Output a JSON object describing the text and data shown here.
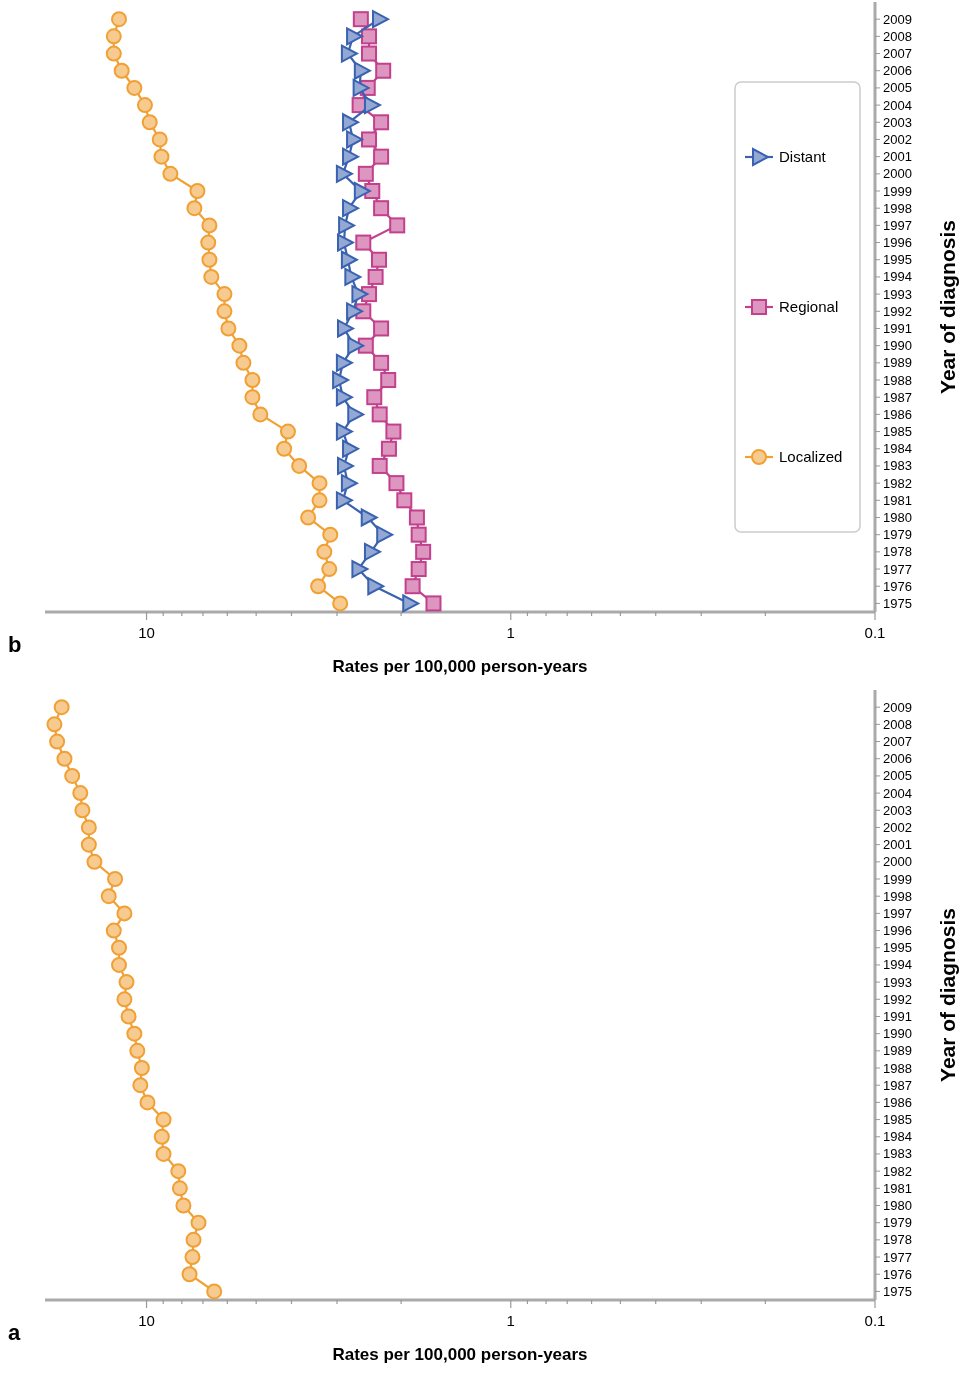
{
  "chart_data": [
    {
      "type": "line",
      "title": "a",
      "xlabel": "Rates per 100,000 person-years",
      "ylabel": "Year of diagnosis",
      "log": "x",
      "legend": false,
      "xlim": [
        19,
        0.1
      ],
      "xticks": [
        {
          "value": 9,
          "label": null
        },
        {
          "value": 8,
          "label": null
        },
        {
          "value": 7,
          "label": null
        },
        {
          "value": 6,
          "label": null
        },
        {
          "value": 5,
          "label": null
        },
        {
          "value": 4,
          "label": null
        },
        {
          "value": 3,
          "label": null
        },
        {
          "value": 2,
          "label": null
        },
        10,
        1,
        {
          "value": 0.9,
          "label": null
        },
        {
          "value": 0.8,
          "label": null
        },
        {
          "value": 0.7,
          "label": null
        },
        {
          "value": 0.6,
          "label": null
        },
        {
          "value": 0.5,
          "label": null
        },
        {
          "value": 0.4,
          "label": null
        },
        {
          "value": 0.3,
          "label": null
        },
        {
          "value": 0.2,
          "label": null
        },
        0.1
      ],
      "ylim": [
        1974.5,
        2010
      ],
      "yticks": [
        1975,
        1976,
        1977,
        1978,
        1979,
        1980,
        1981,
        1982,
        1983,
        1984,
        1985,
        1986,
        1987,
        1988,
        1989,
        1990,
        1991,
        1992,
        1993,
        1994,
        1995,
        1996,
        1997,
        1998,
        1999,
        2000,
        2001,
        2002,
        2003,
        2004,
        2005,
        2006,
        2007,
        2008,
        2009
      ],
      "series": [
        {
          "color": "#f0a035",
          "marker": "circle",
          "x": [
            6.52,
            7.62,
            7.48,
            7.43,
            7.2,
            7.92,
            8.1,
            8.18,
            8.98,
            9.08,
            8.98,
            9.94,
            10.4,
            10.3,
            10.6,
            10.8,
            11.2,
            11.5,
            11.35,
            11.9,
            11.9,
            12.3,
            11.5,
            12.7,
            12.2,
            13.9,
            14.4,
            14.4,
            15.0,
            15.2,
            16.0,
            16.8,
            17.6,
            17.9,
            17.1
          ],
          "values": [
            1975,
            1976,
            1977,
            1978,
            1979,
            1980,
            1981,
            1982,
            1983,
            1984,
            1985,
            1986,
            1987,
            1988,
            1989,
            1990,
            1991,
            1992,
            1993,
            1994,
            1995,
            1996,
            1997,
            1998,
            1999,
            2000,
            2001,
            2002,
            2003,
            2004,
            2005,
            2006,
            2007,
            2008,
            2009
          ]
        }
      ]
    },
    {
      "type": "line",
      "title": "b",
      "xlabel": "Rates per 100,000 person-years",
      "ylabel": "Year of diagnosis",
      "log": "x",
      "legend": "right",
      "xlim": [
        19,
        0.1
      ],
      "xticks": [
        {
          "value": 9,
          "label": null
        },
        {
          "value": 8,
          "label": null
        },
        {
          "value": 7,
          "label": null
        },
        {
          "value": 6,
          "label": null
        },
        {
          "value": 5,
          "label": null
        },
        {
          "value": 4,
          "label": null
        },
        {
          "value": 3,
          "label": null
        },
        {
          "value": 2,
          "label": null
        },
        10,
        1,
        {
          "value": 0.9,
          "label": null
        },
        {
          "value": 0.8,
          "label": null
        },
        {
          "value": 0.7,
          "label": null
        },
        {
          "value": 0.6,
          "label": null
        },
        {
          "value": 0.5,
          "label": null
        },
        {
          "value": 0.4,
          "label": null
        },
        {
          "value": 0.3,
          "label": null
        },
        {
          "value": 0.2,
          "label": null
        },
        0.1
      ],
      "ylim": [
        1974.5,
        2010
      ],
      "yticks": [
        1975,
        1976,
        1977,
        1978,
        1979,
        1980,
        1981,
        1982,
        1983,
        1984,
        1985,
        1986,
        1987,
        1988,
        1989,
        1990,
        1991,
        1992,
        1993,
        1994,
        1995,
        1996,
        1997,
        1998,
        1999,
        2000,
        2001,
        2002,
        2003,
        2004,
        2005,
        2006,
        2007,
        2008,
        2009
      ],
      "series": [
        {
          "name": "Localized",
          "color": "#f0a035",
          "marker": "circle",
          "x": [
            2.94,
            3.38,
            3.15,
            3.25,
            3.13,
            3.6,
            3.35,
            3.35,
            3.81,
            4.19,
            4.09,
            4.87,
            5.12,
            5.12,
            5.42,
            5.56,
            5.96,
            6.11,
            6.11,
            6.64,
            6.72,
            6.77,
            6.72,
            7.39,
            7.25,
            8.6,
            9.1,
            9.2,
            9.8,
            10.1,
            10.8,
            11.7,
            12.3,
            12.3,
            11.9
          ],
          "values": [
            1975,
            1976,
            1977,
            1978,
            1979,
            1980,
            1981,
            1982,
            1983,
            1984,
            1985,
            1986,
            1987,
            1988,
            1989,
            1990,
            1991,
            1992,
            1993,
            1994,
            1995,
            1996,
            1997,
            1998,
            1999,
            2000,
            2001,
            2002,
            2003,
            2004,
            2005,
            2006,
            2007,
            2008,
            2009
          ]
        },
        {
          "name": "Regional",
          "color": "#c2408c",
          "marker": "square",
          "x": [
            1.63,
            1.86,
            1.79,
            1.74,
            1.79,
            1.81,
            1.96,
            2.06,
            2.29,
            2.16,
            2.1,
            2.29,
            2.37,
            2.17,
            2.27,
            2.5,
            2.27,
            2.54,
            2.45,
            2.35,
            2.3,
            2.54,
            2.05,
            2.27,
            2.4,
            2.5,
            2.27,
            2.45,
            2.27,
            2.6,
            2.47,
            2.24,
            2.45,
            2.45,
            2.58
          ],
          "values": [
            1975,
            1976,
            1977,
            1978,
            1979,
            1980,
            1981,
            1982,
            1983,
            1984,
            1985,
            1986,
            1987,
            1988,
            1989,
            1990,
            1991,
            1992,
            1993,
            1994,
            1995,
            1996,
            1997,
            1998,
            1999,
            2000,
            2001,
            2002,
            2003,
            2004,
            2005,
            2006,
            2007,
            2008,
            2009
          ]
        },
        {
          "name": "Distant",
          "color": "#3a62b0",
          "marker": "triangle",
          "x": [
            1.9,
            2.37,
            2.62,
            2.42,
            2.24,
            2.47,
            2.89,
            2.8,
            2.87,
            2.78,
            2.89,
            2.69,
            2.89,
            2.96,
            2.89,
            2.69,
            2.87,
            2.71,
            2.62,
            2.74,
            2.8,
            2.87,
            2.85,
            2.78,
            2.58,
            2.89,
            2.78,
            2.71,
            2.78,
            2.42,
            2.6,
            2.58,
            2.8,
            2.71,
            2.3
          ],
          "values": [
            1975,
            1976,
            1977,
            1978,
            1979,
            1980,
            1981,
            1982,
            1983,
            1984,
            1985,
            1986,
            1987,
            1988,
            1989,
            1990,
            1991,
            1992,
            1993,
            1994,
            1995,
            1996,
            1997,
            1998,
            1999,
            2000,
            2001,
            2002,
            2003,
            2004,
            2005,
            2006,
            2007,
            2008,
            2009
          ]
        }
      ]
    }
  ]
}
